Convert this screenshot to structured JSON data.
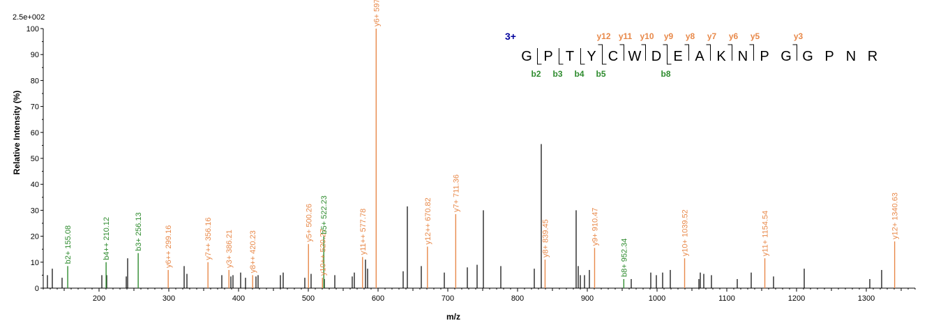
{
  "chart_data": {
    "type": "bar",
    "scale_label": "2.5e+002",
    "xlabel": "m/z",
    "ylabel": "Relative   Intensity (%)",
    "xlim": [
      120,
      1370
    ],
    "ylim": [
      0,
      100
    ],
    "xticks": [
      100,
      200,
      300,
      400,
      500,
      600,
      700,
      800,
      900,
      1000,
      1100,
      1200,
      1300
    ],
    "yticks": [
      0,
      10,
      20,
      30,
      40,
      50,
      60,
      70,
      80,
      90,
      100
    ],
    "colors": {
      "b_ion": "#2e8b2e",
      "y_ion": "#e8894a",
      "unlabeled": "#000000",
      "charge": "#00009c"
    },
    "unlabeled_peaks": [
      {
        "mz": 126,
        "intensity": 5
      },
      {
        "mz": 133,
        "intensity": 7.5
      },
      {
        "mz": 147,
        "intensity": 4
      },
      {
        "mz": 204,
        "intensity": 5
      },
      {
        "mz": 211,
        "intensity": 5
      },
      {
        "mz": 239,
        "intensity": 4.5
      },
      {
        "mz": 241,
        "intensity": 11.5
      },
      {
        "mz": 322,
        "intensity": 8.5
      },
      {
        "mz": 326,
        "intensity": 5.5
      },
      {
        "mz": 376,
        "intensity": 5
      },
      {
        "mz": 389,
        "intensity": 4.5
      },
      {
        "mz": 392,
        "intensity": 5
      },
      {
        "mz": 403,
        "intensity": 6
      },
      {
        "mz": 410,
        "intensity": 4
      },
      {
        "mz": 425,
        "intensity": 4.5
      },
      {
        "mz": 428,
        "intensity": 5
      },
      {
        "mz": 460,
        "intensity": 5
      },
      {
        "mz": 464,
        "intensity": 6
      },
      {
        "mz": 495,
        "intensity": 4
      },
      {
        "mz": 504,
        "intensity": 5.5
      },
      {
        "mz": 523,
        "intensity": 3.5
      },
      {
        "mz": 538,
        "intensity": 5
      },
      {
        "mz": 563,
        "intensity": 4.5
      },
      {
        "mz": 566,
        "intensity": 6
      },
      {
        "mz": 582,
        "intensity": 11
      },
      {
        "mz": 585,
        "intensity": 7.5
      },
      {
        "mz": 636,
        "intensity": 6.5
      },
      {
        "mz": 642,
        "intensity": 31.5
      },
      {
        "mz": 662,
        "intensity": 8.5
      },
      {
        "mz": 695,
        "intensity": 6
      },
      {
        "mz": 728,
        "intensity": 8
      },
      {
        "mz": 742,
        "intensity": 9
      },
      {
        "mz": 751,
        "intensity": 30
      },
      {
        "mz": 776,
        "intensity": 8.5
      },
      {
        "mz": 824,
        "intensity": 7.5
      },
      {
        "mz": 834,
        "intensity": 55.5
      },
      {
        "mz": 884,
        "intensity": 30
      },
      {
        "mz": 887,
        "intensity": 8.5
      },
      {
        "mz": 890,
        "intensity": 5
      },
      {
        "mz": 896,
        "intensity": 5
      },
      {
        "mz": 903,
        "intensity": 7
      },
      {
        "mz": 963,
        "intensity": 3.5
      },
      {
        "mz": 991,
        "intensity": 6
      },
      {
        "mz": 999,
        "intensity": 5
      },
      {
        "mz": 1008,
        "intensity": 6
      },
      {
        "mz": 1019,
        "intensity": 7
      },
      {
        "mz": 1060,
        "intensity": 3.5
      },
      {
        "mz": 1062,
        "intensity": 6
      },
      {
        "mz": 1067,
        "intensity": 5.5
      },
      {
        "mz": 1078,
        "intensity": 5
      },
      {
        "mz": 1115,
        "intensity": 3.5
      },
      {
        "mz": 1135,
        "intensity": 6
      },
      {
        "mz": 1167,
        "intensity": 4.5
      },
      {
        "mz": 1211,
        "intensity": 7.5
      },
      {
        "mz": 1305,
        "intensity": 3.5
      },
      {
        "mz": 1322,
        "intensity": 7
      }
    ],
    "labeled_peaks": [
      {
        "mz": 155.08,
        "intensity": 8.5,
        "label": "b2+ 155.08",
        "ion": "b"
      },
      {
        "mz": 210.12,
        "intensity": 10,
        "label": "b4++ 210.12",
        "ion": "b"
      },
      {
        "mz": 256.13,
        "intensity": 13.5,
        "label": "b3+ 256.13",
        "ion": "b"
      },
      {
        "mz": 299.16,
        "intensity": 7,
        "label": "y6++ 299.16",
        "ion": "y"
      },
      {
        "mz": 356.16,
        "intensity": 10,
        "label": "y7++ 356.16",
        "ion": "y"
      },
      {
        "mz": 386.21,
        "intensity": 7,
        "label": "y3+ 386.21",
        "ion": "y"
      },
      {
        "mz": 420.23,
        "intensity": 5,
        "label": "y8++ 420.23",
        "ion": "y"
      },
      {
        "mz": 500.26,
        "intensity": 17,
        "label": "y5+ 500.26",
        "ion": "y"
      },
      {
        "mz": 520.27,
        "intensity": 4,
        "label": "y10++ 520.27",
        "ion": "y"
      },
      {
        "mz": 522.23,
        "intensity": 20,
        "label": "b5+ 522.23",
        "ion": "b"
      },
      {
        "mz": 577.78,
        "intensity": 12,
        "label": "y11++ 577.78",
        "ion": "y"
      },
      {
        "mz": 597.3,
        "intensity": 100,
        "label": "y6+ 597.3",
        "ion": "y"
      },
      {
        "mz": 670.82,
        "intensity": 16,
        "label": "y12++ 670.82",
        "ion": "y"
      },
      {
        "mz": 711.36,
        "intensity": 28.5,
        "label": "y7+ 711.36",
        "ion": "y"
      },
      {
        "mz": 839.45,
        "intensity": 11,
        "label": "y8+ 839.45",
        "ion": "y"
      },
      {
        "mz": 910.47,
        "intensity": 15.5,
        "label": "y9+ 910.47",
        "ion": "y"
      },
      {
        "mz": 952.34,
        "intensity": 3.5,
        "label": "b8+ 952.34",
        "ion": "b"
      },
      {
        "mz": 1039.52,
        "intensity": 11.5,
        "label": "y10+ 1039.52",
        "ion": "y"
      },
      {
        "mz": 1154.54,
        "intensity": 11.5,
        "label": "y11+ 1154.54",
        "ion": "y"
      },
      {
        "mz": 1340.63,
        "intensity": 18,
        "label": "y12+ 1340.63",
        "ion": "y"
      }
    ],
    "sequence_annotation": {
      "charge": "3+",
      "residues": [
        "G",
        "P",
        "T",
        "Y",
        "C",
        "W",
        "D",
        "E",
        "A",
        "K",
        "N",
        "P",
        "G",
        "G",
        "P",
        "N",
        "R"
      ],
      "y_ions": [
        {
          "label": "y12",
          "after": 4
        },
        {
          "label": "y11",
          "after": 5
        },
        {
          "label": "y10",
          "after": 6
        },
        {
          "label": "y9",
          "after": 7
        },
        {
          "label": "y8",
          "after": 8
        },
        {
          "label": "y7",
          "after": 9
        },
        {
          "label": "y6",
          "after": 10
        },
        {
          "label": "y5",
          "after": 11
        },
        {
          "label": "y3",
          "after": 13
        }
      ],
      "b_ions": [
        {
          "label": "b2",
          "after": 1
        },
        {
          "label": "b3",
          "after": 2
        },
        {
          "label": "b4",
          "after": 3
        },
        {
          "label": "b5",
          "after": 4
        },
        {
          "label": "b8",
          "after": 7
        }
      ]
    }
  }
}
